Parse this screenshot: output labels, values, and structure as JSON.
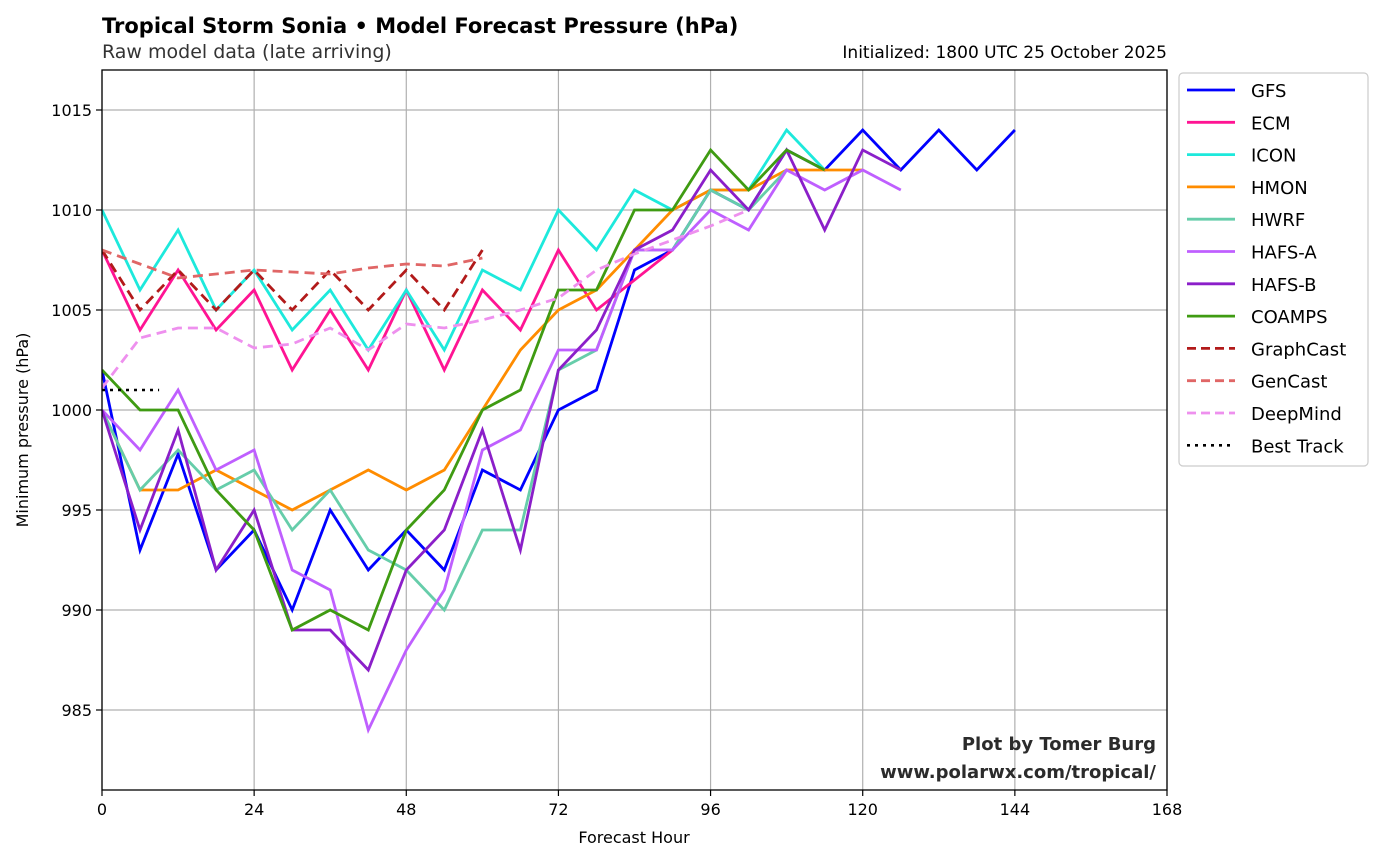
{
  "chart_data": {
    "type": "line",
    "title": "Tropical Storm Sonia • Model Forecast Pressure (hPa)",
    "subtitle": "Raw model data (late arriving)",
    "init_label": "Initialized: 1800 UTC 25 October 2025",
    "xlabel": "Forecast Hour",
    "ylabel": "Minimum pressure (hPa)",
    "xlim": [
      0,
      168
    ],
    "ylim": [
      981,
      1017
    ],
    "xticks": [
      0,
      24,
      48,
      72,
      96,
      120,
      144,
      168
    ],
    "yticks": [
      985,
      990,
      995,
      1000,
      1005,
      1010,
      1015
    ],
    "grid": true,
    "legend_position": "outside-top-right",
    "credit_lines": [
      "Plot by Tomer Burg",
      "www.polarwx.com/tropical/"
    ],
    "series": [
      {
        "name": "GFS",
        "color": "#0000ff",
        "style": "solid",
        "x": [
          0,
          6,
          12,
          18,
          24,
          30,
          36,
          42,
          48,
          54,
          60,
          66,
          72,
          78,
          84,
          90,
          96,
          102,
          108,
          114,
          120,
          126,
          132,
          138,
          144
        ],
        "y": [
          1002,
          993,
          997.8,
          992,
          994,
          990,
          995,
          992,
          994,
          992,
          997,
          996,
          1000,
          1001,
          1007,
          1008,
          1011,
          1010,
          1013,
          1012,
          1014,
          1012,
          1014,
          1012,
          1014
        ]
      },
      {
        "name": "ECM",
        "color": "#ff1493",
        "style": "solid",
        "x": [
          0,
          6,
          12,
          18,
          24,
          30,
          36,
          42,
          48,
          54,
          60,
          66,
          72,
          78,
          84,
          90
        ],
        "y": [
          1008,
          1004,
          1007,
          1004,
          1006,
          1002,
          1005,
          1002,
          1006,
          1002,
          1006,
          1004,
          1008,
          1005,
          1006.5,
          1008
        ]
      },
      {
        "name": "ICON",
        "color": "#1de9dc",
        "style": "solid",
        "x": [
          0,
          6,
          12,
          18,
          24,
          30,
          36,
          42,
          48,
          54,
          60,
          66,
          72,
          78,
          84,
          90,
          96,
          102,
          108,
          114
        ],
        "y": [
          1010,
          1006,
          1009,
          1005,
          1007,
          1004,
          1006,
          1003,
          1006,
          1003,
          1007,
          1006,
          1010,
          1008,
          1011,
          1010,
          1011,
          1011,
          1014,
          1012
        ]
      },
      {
        "name": "HMON",
        "color": "#ff8c00",
        "style": "solid",
        "x": [
          0,
          6,
          12,
          18,
          24,
          30,
          36,
          42,
          48,
          54,
          60,
          66,
          72,
          78,
          84,
          90,
          96,
          102,
          108,
          114,
          120
        ],
        "y": [
          1000,
          996,
          996,
          997,
          996,
          995,
          996,
          997,
          996,
          997,
          1000,
          1003,
          1005,
          1006,
          1008,
          1010,
          1011,
          1011,
          1012,
          1012,
          1012
        ]
      },
      {
        "name": "HWRF",
        "color": "#66cdaa",
        "style": "solid",
        "x": [
          0,
          6,
          12,
          18,
          24,
          30,
          36,
          42,
          48,
          54,
          60,
          66,
          72,
          78,
          84,
          90,
          96,
          102,
          108
        ],
        "y": [
          1000,
          996,
          998,
          996,
          997,
          994,
          996,
          993,
          992,
          990,
          994,
          994,
          1002,
          1003,
          1008,
          1008,
          1011,
          1010,
          1012
        ]
      },
      {
        "name": "HAFS-A",
        "color": "#bf5fff",
        "style": "solid",
        "x": [
          0,
          6,
          12,
          18,
          24,
          30,
          36,
          42,
          48,
          54,
          60,
          66,
          72,
          78,
          84,
          90,
          96,
          102,
          108,
          114,
          120,
          126
        ],
        "y": [
          1000,
          998,
          1001,
          997,
          998,
          992,
          991,
          984,
          988,
          991,
          998,
          999,
          1003,
          1003,
          1008,
          1008,
          1010,
          1009,
          1012,
          1011,
          1012,
          1011
        ]
      },
      {
        "name": "HAFS-B",
        "color": "#8b1fc9",
        "style": "solid",
        "x": [
          0,
          6,
          12,
          18,
          24,
          30,
          36,
          42,
          48,
          54,
          60,
          66,
          72,
          78,
          84,
          90,
          96,
          102,
          108,
          114,
          120,
          126
        ],
        "y": [
          1000,
          994,
          999,
          992,
          995,
          989,
          989,
          987,
          992,
          994,
          999,
          993,
          1002,
          1004,
          1008,
          1009,
          1012,
          1010,
          1013,
          1009,
          1013,
          1012
        ]
      },
      {
        "name": "COAMPS",
        "color": "#3f9b12",
        "style": "solid",
        "x": [
          0,
          6,
          12,
          18,
          24,
          30,
          36,
          42,
          48,
          54,
          60,
          66,
          72,
          78,
          84,
          90,
          96,
          102,
          108,
          114
        ],
        "y": [
          1002,
          1000,
          1000,
          996,
          994,
          989,
          990,
          989,
          994,
          996,
          1000,
          1001,
          1006,
          1006,
          1010,
          1010,
          1013,
          1011,
          1013,
          1012
        ]
      },
      {
        "name": "GraphCast",
        "color": "#b21a1a",
        "style": "dashed",
        "x": [
          0,
          6,
          12,
          18,
          24,
          30,
          36,
          42,
          48,
          54,
          60
        ],
        "y": [
          1008,
          1005,
          1007,
          1005,
          1007,
          1005,
          1007,
          1005,
          1007,
          1005,
          1008
        ]
      },
      {
        "name": "GenCast",
        "color": "#e06666",
        "style": "dashed",
        "x": [
          0,
          6,
          12,
          18,
          24,
          30,
          36,
          42,
          48,
          54,
          60
        ],
        "y": [
          1008,
          1007.3,
          1006.6,
          1006.8,
          1007.0,
          1006.9,
          1006.8,
          1007.1,
          1007.3,
          1007.2,
          1007.6
        ]
      },
      {
        "name": "DeepMind",
        "color": "#ee90ee",
        "style": "dashed",
        "x": [
          0,
          6,
          12,
          18,
          24,
          30,
          36,
          42,
          48,
          54,
          60,
          66,
          72,
          78,
          84,
          90,
          96,
          102
        ],
        "y": [
          1001.1,
          1003.6,
          1004.1,
          1004.1,
          1003.1,
          1003.3,
          1004.1,
          1003.0,
          1004.3,
          1004.1,
          1004.5,
          1005.0,
          1005.6,
          1007.0,
          1007.8,
          1008.5,
          1009.2,
          1010
        ]
      },
      {
        "name": "Best Track",
        "color": "#000000",
        "style": "dotted",
        "x": [
          0,
          9
        ],
        "y": [
          1001,
          1001
        ]
      }
    ]
  }
}
